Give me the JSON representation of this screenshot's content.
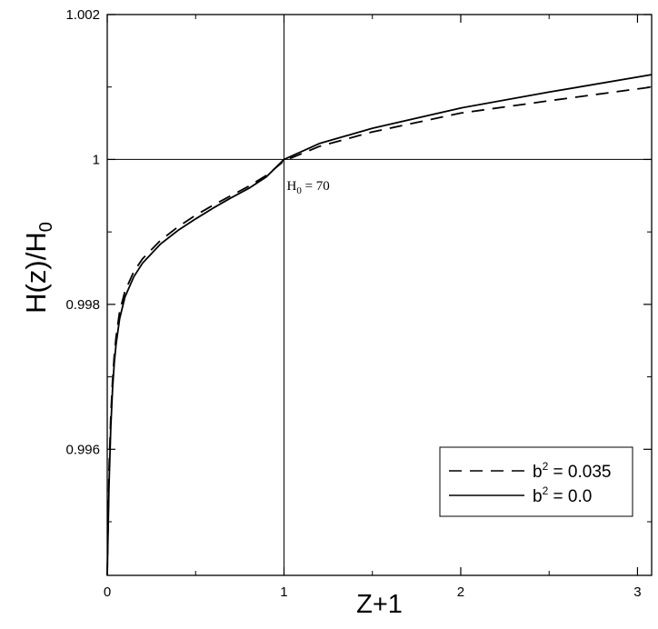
{
  "chart_data": {
    "type": "line",
    "title": "",
    "xlabel": "Z+1",
    "ylabel": {
      "main": "H(z)/H",
      "sub": "0"
    },
    "xlim": [
      0,
      3.08
    ],
    "ylim": [
      0.99426,
      1.002
    ],
    "x_ticks": [
      0,
      1,
      2,
      3
    ],
    "x_tick_labels": [
      "0",
      "1",
      "2",
      "3"
    ],
    "y_ticks": [
      0.996,
      0.998,
      1.0,
      1.002
    ],
    "y_tick_labels": [
      "0.996",
      "0.998",
      "1",
      "1.002"
    ],
    "reference_lines": {
      "x": 1,
      "y": 1
    },
    "annotation": {
      "main": "H",
      "sub": "0",
      "rest": " = 70",
      "x": 1.0,
      "y": 0.99963
    },
    "legend": {
      "position": "bottom-right"
    },
    "series": [
      {
        "name": "b² = 0.035",
        "name_parts": {
          "base": "b",
          "sup": "2",
          "rest": " = 0.035"
        },
        "style": "dashed",
        "color": "#000000",
        "x": [
          0.0,
          0.01,
          0.02,
          0.03,
          0.04,
          0.05,
          0.07,
          0.1,
          0.15,
          0.2,
          0.3,
          0.4,
          0.5,
          0.6,
          0.7,
          0.8,
          0.9,
          1.0,
          1.2,
          1.5,
          2.0,
          2.5,
          3.08
        ],
        "y": [
          0.99426,
          0.9957,
          0.99645,
          0.99695,
          0.9973,
          0.99755,
          0.9979,
          0.99818,
          0.99845,
          0.99863,
          0.99888,
          0.99907,
          0.99923,
          0.99937,
          0.9995,
          0.99963,
          0.99978,
          0.99998,
          1.00018,
          1.00038,
          1.00064,
          1.00081,
          1.001
        ]
      },
      {
        "name": "b² = 0.0",
        "name_parts": {
          "base": "b",
          "sup": "2",
          "rest": " = 0.0"
        },
        "style": "solid",
        "color": "#000000",
        "x": [
          0.0,
          0.01,
          0.02,
          0.03,
          0.04,
          0.05,
          0.07,
          0.1,
          0.15,
          0.2,
          0.3,
          0.4,
          0.5,
          0.6,
          0.7,
          0.8,
          0.9,
          1.0,
          1.2,
          1.5,
          2.0,
          2.5,
          3.08
        ],
        "y": [
          0.99426,
          0.9955,
          0.9963,
          0.99683,
          0.9972,
          0.99745,
          0.9978,
          0.9981,
          0.99838,
          0.99857,
          0.99883,
          0.99902,
          0.99918,
          0.99933,
          0.99947,
          0.9996,
          0.99976,
          1.0,
          1.00022,
          1.00043,
          1.00071,
          1.00093,
          1.00117
        ]
      }
    ]
  }
}
